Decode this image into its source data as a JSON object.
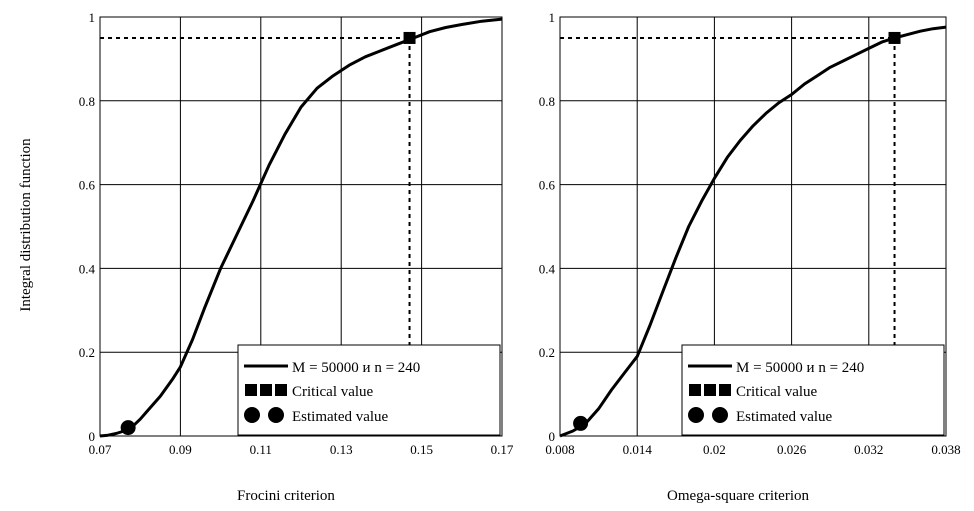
{
  "figure": {
    "ylabel": "Integral distribution function"
  },
  "chart_data": [
    {
      "type": "line",
      "xlabel": "Frocini criterion",
      "ylabel": "Integral distribution function",
      "xlim": [
        0.07,
        0.17
      ],
      "ylim": [
        0,
        1
      ],
      "xticks": [
        "0.07",
        "0.09",
        "0.11",
        "0.13",
        "0.15",
        "0.17"
      ],
      "xtick_values": [
        0.07,
        0.09,
        0.11,
        0.13,
        0.15,
        0.17
      ],
      "yticks": [
        "0",
        "0.2",
        "0.4",
        "0.6",
        "0.8",
        "1"
      ],
      "ytick_values": [
        0,
        0.2,
        0.4,
        0.6,
        0.8,
        1
      ],
      "grid": true,
      "legend_position": "bottom-right",
      "series": [
        {
          "name": "M = 50000 и n = 240",
          "x": [
            0.07,
            0.072,
            0.074,
            0.076,
            0.078,
            0.08,
            0.082,
            0.085,
            0.088,
            0.09,
            0.093,
            0.096,
            0.1,
            0.104,
            0.108,
            0.112,
            0.116,
            0.12,
            0.124,
            0.128,
            0.132,
            0.136,
            0.14,
            0.144,
            0.148,
            0.152,
            0.156,
            0.16,
            0.165,
            0.17
          ],
          "y": [
            0.0,
            0.002,
            0.006,
            0.012,
            0.022,
            0.04,
            0.062,
            0.095,
            0.135,
            0.165,
            0.23,
            0.305,
            0.4,
            0.48,
            0.56,
            0.645,
            0.72,
            0.785,
            0.83,
            0.86,
            0.885,
            0.905,
            0.92,
            0.935,
            0.95,
            0.965,
            0.975,
            0.982,
            0.99,
            0.995
          ]
        }
      ],
      "critical_value": {
        "label": "Critical value",
        "x": 0.147,
        "y": 0.95
      },
      "estimated_value": {
        "label": "Estimated value",
        "x": 0.077,
        "y": 0.02
      }
    },
    {
      "type": "line",
      "xlabel": "Omega-square criterion",
      "ylabel": "",
      "xlim": [
        0.008,
        0.038
      ],
      "ylim": [
        0,
        1
      ],
      "xticks": [
        "0.008",
        "0.014",
        "0.02",
        "0.026",
        "0.032",
        "0.038"
      ],
      "xtick_values": [
        0.008,
        0.014,
        0.02,
        0.026,
        0.032,
        0.038
      ],
      "yticks": [
        "0",
        "0.2",
        "0.4",
        "0.6",
        "0.8",
        "1"
      ],
      "ytick_values": [
        0,
        0.2,
        0.4,
        0.6,
        0.8,
        1
      ],
      "grid": true,
      "legend_position": "bottom-right",
      "series": [
        {
          "name": "M = 50000 и n = 240",
          "x": [
            0.008,
            0.009,
            0.01,
            0.011,
            0.012,
            0.013,
            0.014,
            0.015,
            0.016,
            0.017,
            0.018,
            0.019,
            0.02,
            0.021,
            0.022,
            0.023,
            0.024,
            0.025,
            0.026,
            0.027,
            0.028,
            0.029,
            0.03,
            0.031,
            0.032,
            0.033,
            0.034,
            0.035,
            0.036,
            0.037,
            0.038
          ],
          "y": [
            0.0,
            0.012,
            0.03,
            0.065,
            0.11,
            0.15,
            0.19,
            0.265,
            0.345,
            0.425,
            0.5,
            0.56,
            0.615,
            0.665,
            0.705,
            0.74,
            0.77,
            0.795,
            0.815,
            0.84,
            0.86,
            0.88,
            0.895,
            0.91,
            0.925,
            0.94,
            0.95,
            0.958,
            0.966,
            0.972,
            0.976
          ]
        }
      ],
      "critical_value": {
        "label": "Critical value",
        "x": 0.034,
        "y": 0.95
      },
      "estimated_value": {
        "label": "Estimated value",
        "x": 0.0096,
        "y": 0.03
      }
    }
  ]
}
